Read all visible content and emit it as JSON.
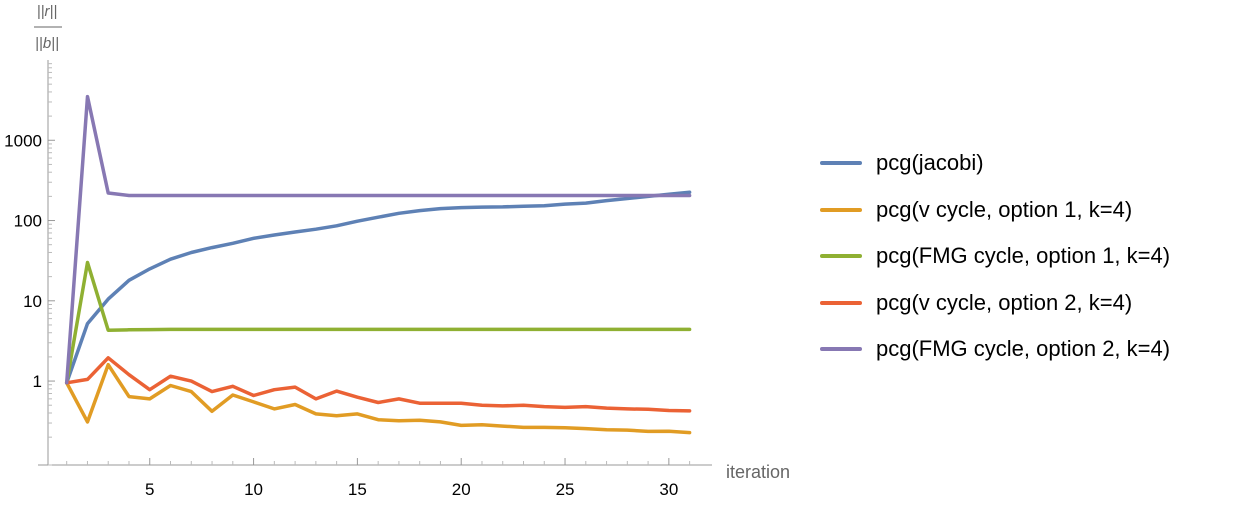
{
  "chart_data": {
    "type": "line",
    "xlabel": "iteration",
    "ylabel_numerator": "||r||",
    "ylabel_denominator": "||b||",
    "y_scale": "log",
    "xlim": [
      0.1,
      31.5
    ],
    "ylim": [
      0.09,
      10000
    ],
    "x_ticks": [
      5,
      10,
      15,
      20,
      25,
      30
    ],
    "y_ticks": [
      1,
      10,
      100,
      1000
    ],
    "y_tick_labels": [
      "1",
      "10",
      "100",
      "1000"
    ],
    "grid": false,
    "legend_position": "right",
    "series": [
      {
        "name": "pcg(jacobi)",
        "color": "#5e81b5",
        "x": [
          1,
          2,
          3,
          4,
          5,
          6,
          7,
          8,
          9,
          10,
          11,
          12,
          13,
          14,
          15,
          16,
          17,
          18,
          19,
          20,
          21,
          22,
          23,
          24,
          25,
          26,
          27,
          28,
          29,
          30,
          31
        ],
        "values": [
          0.95,
          5.2,
          10.5,
          18,
          25,
          33,
          40,
          46,
          52,
          60,
          66,
          72,
          78,
          86,
          98,
          110,
          123,
          133,
          141,
          145,
          147,
          148,
          151,
          153,
          160,
          165,
          177,
          188,
          200,
          212,
          225
        ]
      },
      {
        "name": "pcg(v cycle, option 1, k=4)",
        "color": "#e19c24",
        "x": [
          1,
          2,
          3,
          4,
          5,
          6,
          7,
          8,
          9,
          10,
          11,
          12,
          13,
          14,
          15,
          16,
          17,
          18,
          19,
          20,
          21,
          22,
          23,
          24,
          25,
          26,
          27,
          28,
          29,
          30,
          31
        ],
        "values": [
          0.95,
          0.31,
          1.6,
          0.64,
          0.6,
          0.88,
          0.74,
          0.42,
          0.67,
          0.55,
          0.45,
          0.51,
          0.39,
          0.37,
          0.39,
          0.33,
          0.32,
          0.325,
          0.31,
          0.28,
          0.285,
          0.275,
          0.265,
          0.265,
          0.262,
          0.256,
          0.248,
          0.245,
          0.236,
          0.237,
          0.228
        ]
      },
      {
        "name": "pcg(FMG cycle, option 1, k=4)",
        "color": "#8fb032",
        "x": [
          1,
          2,
          3,
          4,
          5,
          6,
          7,
          8,
          9,
          10,
          11,
          12,
          13,
          14,
          15,
          16,
          17,
          18,
          19,
          20,
          21,
          22,
          23,
          24,
          25,
          26,
          27,
          28,
          29,
          30,
          31
        ],
        "values": [
          0.95,
          30,
          4.3,
          4.35,
          4.38,
          4.4,
          4.4,
          4.4,
          4.4,
          4.4,
          4.4,
          4.4,
          4.4,
          4.4,
          4.4,
          4.4,
          4.4,
          4.4,
          4.4,
          4.4,
          4.4,
          4.4,
          4.4,
          4.4,
          4.4,
          4.4,
          4.4,
          4.4,
          4.4,
          4.4,
          4.4
        ]
      },
      {
        "name": "pcg(v cycle, option 2, k=4)",
        "color": "#eb6235",
        "x": [
          1,
          2,
          3,
          4,
          5,
          6,
          7,
          8,
          9,
          10,
          11,
          12,
          13,
          14,
          15,
          16,
          17,
          18,
          19,
          20,
          21,
          22,
          23,
          24,
          25,
          26,
          27,
          28,
          29,
          30,
          31
        ],
        "values": [
          0.95,
          1.05,
          1.95,
          1.2,
          0.78,
          1.15,
          1.0,
          0.74,
          0.86,
          0.66,
          0.78,
          0.84,
          0.6,
          0.75,
          0.63,
          0.54,
          0.6,
          0.53,
          0.53,
          0.53,
          0.5,
          0.49,
          0.5,
          0.48,
          0.47,
          0.48,
          0.46,
          0.45,
          0.445,
          0.43,
          0.425
        ]
      },
      {
        "name": "pcg(FMG cycle, option 2, k=4)",
        "color": "#8778b3",
        "x": [
          1,
          2,
          3,
          4,
          5,
          6,
          7,
          8,
          9,
          10,
          11,
          12,
          13,
          14,
          15,
          16,
          17,
          18,
          19,
          20,
          21,
          22,
          23,
          24,
          25,
          26,
          27,
          28,
          29,
          30,
          31
        ],
        "values": [
          0.95,
          3500,
          220,
          205,
          205,
          205,
          205,
          205,
          205,
          205,
          205,
          205,
          205,
          205,
          205,
          205,
          205,
          205,
          205,
          205,
          205,
          205,
          205,
          205,
          205,
          205,
          205,
          205,
          205,
          205,
          205
        ]
      }
    ]
  }
}
